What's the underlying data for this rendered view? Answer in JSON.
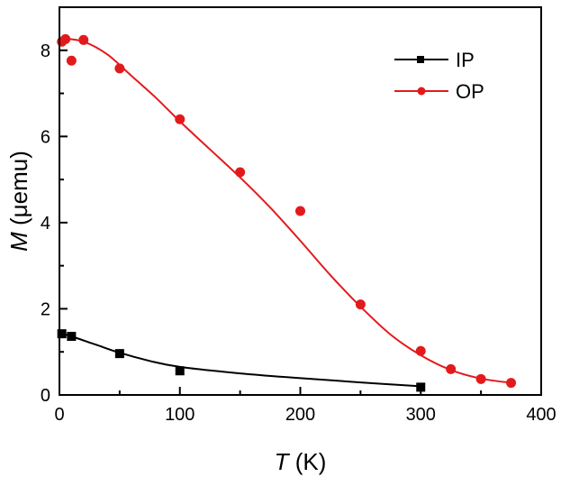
{
  "chart_data": {
    "type": "scatter",
    "xlabel": {
      "var": "T",
      "unit": " (K)"
    },
    "ylabel": {
      "var": "M",
      "unit": " (μemu)"
    },
    "xlim": [
      0,
      400
    ],
    "ylim": [
      0,
      9
    ],
    "xticks": [
      0,
      100,
      200,
      300,
      400
    ],
    "yticks": [
      0,
      2,
      4,
      6,
      8
    ],
    "grid": false,
    "legend_position": "top-right",
    "series": [
      {
        "name": "IP",
        "color": "#000000",
        "marker": "square",
        "points": [
          {
            "x": 2,
            "y": 1.42
          },
          {
            "x": 10,
            "y": 1.36
          },
          {
            "x": 50,
            "y": 0.96
          },
          {
            "x": 100,
            "y": 0.56
          },
          {
            "x": 300,
            "y": 0.18
          }
        ],
        "fit_curve": [
          {
            "x": 2,
            "y": 1.42
          },
          {
            "x": 10,
            "y": 1.36
          },
          {
            "x": 30,
            "y": 1.17
          },
          {
            "x": 50,
            "y": 0.98
          },
          {
            "x": 75,
            "y": 0.79
          },
          {
            "x": 100,
            "y": 0.65
          },
          {
            "x": 150,
            "y": 0.5
          },
          {
            "x": 200,
            "y": 0.39
          },
          {
            "x": 250,
            "y": 0.29
          },
          {
            "x": 300,
            "y": 0.2
          }
        ]
      },
      {
        "name": "OP",
        "color": "#e31a1c",
        "marker": "circle",
        "points": [
          {
            "x": 2,
            "y": 8.2
          },
          {
            "x": 5,
            "y": 8.26
          },
          {
            "x": 10,
            "y": 7.76
          },
          {
            "x": 20,
            "y": 8.24
          },
          {
            "x": 50,
            "y": 7.58
          },
          {
            "x": 100,
            "y": 6.4
          },
          {
            "x": 150,
            "y": 5.17
          },
          {
            "x": 200,
            "y": 4.27
          },
          {
            "x": 250,
            "y": 2.1
          },
          {
            "x": 300,
            "y": 1.02
          },
          {
            "x": 325,
            "y": 0.6
          },
          {
            "x": 350,
            "y": 0.37
          },
          {
            "x": 375,
            "y": 0.28
          }
        ],
        "fit_curve": [
          {
            "x": 2,
            "y": 8.28
          },
          {
            "x": 20,
            "y": 8.2
          },
          {
            "x": 40,
            "y": 7.9
          },
          {
            "x": 60,
            "y": 7.4
          },
          {
            "x": 80,
            "y": 6.9
          },
          {
            "x": 100,
            "y": 6.35
          },
          {
            "x": 125,
            "y": 5.7
          },
          {
            "x": 150,
            "y": 5.05
          },
          {
            "x": 175,
            "y": 4.35
          },
          {
            "x": 200,
            "y": 3.58
          },
          {
            "x": 225,
            "y": 2.78
          },
          {
            "x": 250,
            "y": 2.05
          },
          {
            "x": 275,
            "y": 1.4
          },
          {
            "x": 300,
            "y": 0.92
          },
          {
            "x": 325,
            "y": 0.58
          },
          {
            "x": 350,
            "y": 0.38
          },
          {
            "x": 375,
            "y": 0.28
          }
        ]
      }
    ]
  }
}
